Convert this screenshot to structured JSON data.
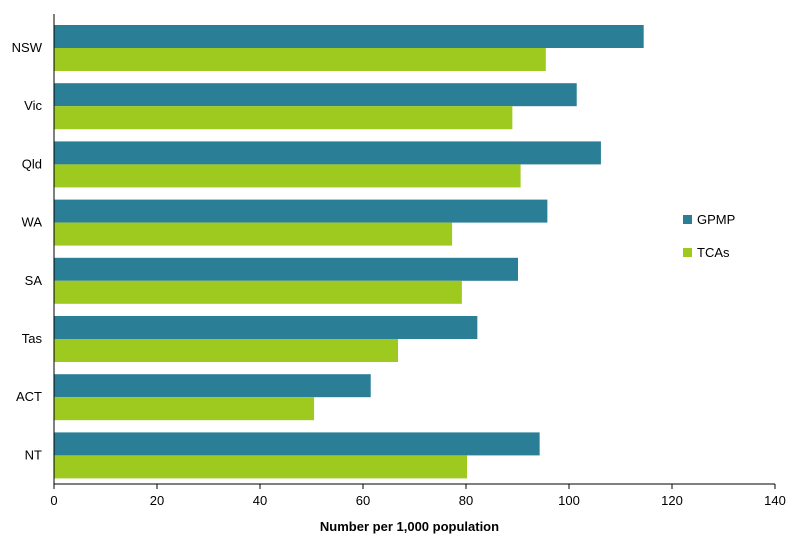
{
  "chart_data": {
    "type": "bar",
    "orientation": "horizontal",
    "categories": [
      "NSW",
      "Vic",
      "Qld",
      "WA",
      "SA",
      "Tas",
      "ACT",
      "NT"
    ],
    "series": [
      {
        "name": "GPMP",
        "color": "#2a7f97",
        "values": [
          114.5,
          101.5,
          106.2,
          95.8,
          90.1,
          82.2,
          61.5,
          94.3
        ]
      },
      {
        "name": "TCAs",
        "color": "#9ec91f",
        "values": [
          95.5,
          89.0,
          90.6,
          77.3,
          79.2,
          66.8,
          50.5,
          80.2
        ]
      }
    ],
    "xlabel": "Number per 1,000 population",
    "xlim": [
      0,
      140
    ],
    "xticks": [
      0,
      20,
      40,
      60,
      80,
      100,
      120,
      140
    ],
    "grid": false,
    "legend_position": "right"
  }
}
